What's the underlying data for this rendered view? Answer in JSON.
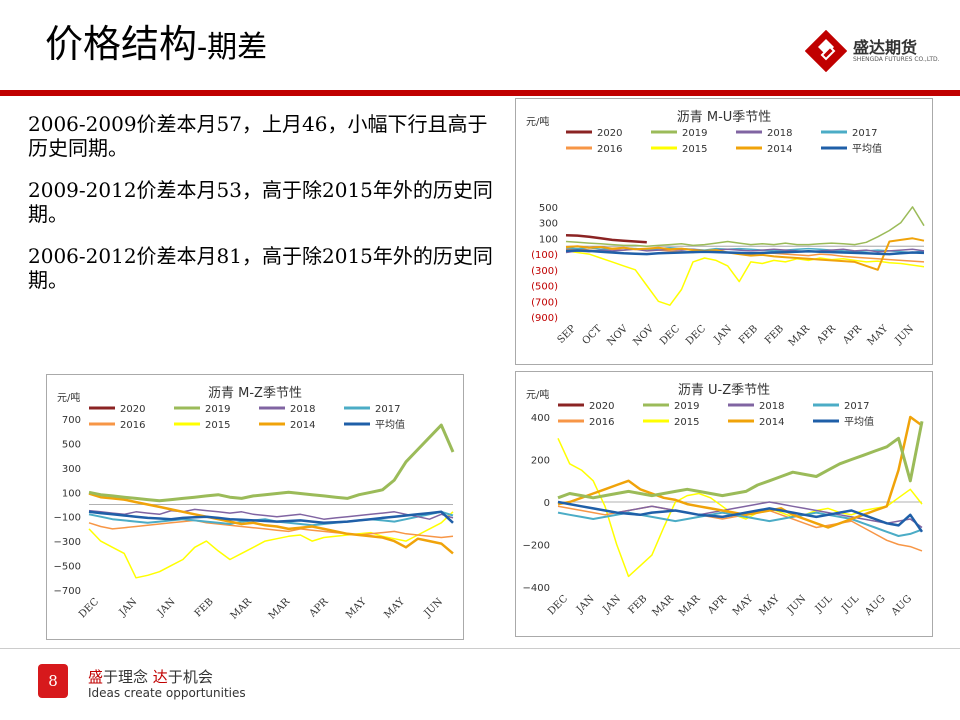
{
  "page": {
    "title_main": "价格结构",
    "title_sub": "-期差",
    "page_number": "8",
    "logo_name": "盛达期货",
    "logo_sub": "SHENGDA FUTURES CO.,LTD.",
    "slogan_cn_1": "盛",
    "slogan_cn_2": "于理念 ",
    "slogan_cn_3": "达",
    "slogan_cn_4": "于机会",
    "slogan_en": "Ideas create opportunities",
    "paragraphs": [
      "2006-2009价差本月57，上月46，小幅下行且高于历史同期。",
      "2009-2012价差本月53，高于除2015年外的历史同期。",
      "2006-2012价差本月81，高于除2015年外的历史同期。"
    ],
    "accent_color": "#c00000"
  },
  "chart_data": [
    {
      "id": "mu",
      "type": "line",
      "title": "沥青 M-U季节性",
      "ylabel": "元/吨",
      "ylim": [
        -900,
        600
      ],
      "yticks": [
        "500",
        "300",
        "100",
        "(100)",
        "(300)",
        "(500)",
        "(700)",
        "(900)"
      ],
      "ytick_values": [
        500,
        300,
        100,
        -100,
        -300,
        -500,
        -700,
        -900
      ],
      "ytick_negative_red": true,
      "x_ticks": [
        "SEP",
        "OCT",
        "NOV",
        "NOV",
        "DEC",
        "DEC",
        "JAN",
        "FEB",
        "FEB",
        "MAR",
        "APR",
        "APR",
        "MAY",
        "JUN"
      ],
      "series": [
        {
          "name": "2020",
          "color": "#8b2323",
          "width": 2.5,
          "values": [
            140,
            135,
            120,
            100,
            80,
            70,
            60,
            50
          ]
        },
        {
          "name": "2019",
          "color": "#9bbb59",
          "width": 1.5,
          "values": [
            60,
            50,
            40,
            30,
            20,
            10,
            10,
            0,
            10,
            20,
            30,
            10,
            20,
            40,
            60,
            40,
            20,
            30,
            20,
            40,
            20,
            20,
            30,
            40,
            30,
            20,
            50,
            120,
            200,
            300,
            500,
            260
          ]
        },
        {
          "name": "2018",
          "color": "#8064a2",
          "width": 1.5,
          "values": [
            -80,
            -60,
            -70,
            -50,
            -60,
            -50,
            -40,
            -60,
            -50,
            -40,
            -50,
            -40,
            -60,
            -50,
            -40,
            -50,
            -60,
            -50,
            -40,
            -50,
            -60,
            -70,
            -60,
            -50,
            -40,
            -60,
            -50,
            -70,
            -60,
            -50,
            -40,
            -60
          ]
        },
        {
          "name": "2017",
          "color": "#4bacc6",
          "width": 1.5,
          "values": [
            -20,
            -30,
            -20,
            -40,
            -30,
            -20,
            -30,
            -40,
            -30,
            -20,
            -30,
            -40,
            -50,
            -30,
            -40,
            -30,
            -40,
            -50,
            -60,
            -50,
            -40,
            -30,
            -40,
            -50,
            -60,
            -70,
            -60,
            -50,
            -60,
            -70,
            -80,
            -60
          ]
        },
        {
          "name": "2016",
          "color": "#f79646",
          "width": 1.5,
          "values": [
            -40,
            -30,
            -50,
            -60,
            -40,
            -50,
            -30,
            -40,
            -50,
            -60,
            -70,
            -80,
            -60,
            -70,
            -80,
            -90,
            -100,
            -80,
            -90,
            -100,
            -110,
            -120,
            -100,
            -110,
            -130,
            -140,
            -150,
            -160,
            -170,
            -180,
            -190,
            -200
          ]
        },
        {
          "name": "2015",
          "color": "#ffff00",
          "width": 1.5,
          "values": [
            -60,
            -80,
            -100,
            -150,
            -200,
            -250,
            -300,
            -500,
            -700,
            -750,
            -550,
            -200,
            -150,
            -180,
            -250,
            -450,
            -200,
            -220,
            -180,
            -200,
            -160,
            -180,
            -150,
            -170,
            -160,
            -180,
            -200,
            -190,
            -210,
            -220,
            -240,
            -260
          ]
        },
        {
          "name": "2014",
          "color": "#f0a30a",
          "width": 2,
          "values": [
            -10,
            0,
            -20,
            -10,
            -30,
            -20,
            -40,
            -30,
            -20,
            -40,
            -30,
            -50,
            -60,
            -50,
            -80,
            -100,
            -120,
            -110,
            -130,
            -140,
            -150,
            -160,
            -170,
            -180,
            -190,
            -200,
            -250,
            -300,
            60,
            80,
            100,
            70
          ]
        },
        {
          "name": "平均值",
          "color": "#1f5fa8",
          "width": 2.5,
          "values": [
            -60,
            -55,
            -60,
            -70,
            -80,
            -90,
            -95,
            -100,
            -90,
            -85,
            -80,
            -75,
            -70,
            -75,
            -80,
            -85,
            -90,
            -85,
            -80,
            -75,
            -70,
            -65,
            -70,
            -75,
            -80,
            -85,
            -90,
            -95,
            -100,
            -90,
            -80,
            -85
          ]
        }
      ]
    },
    {
      "id": "mz",
      "type": "line",
      "title": "沥青 M-Z季节性",
      "ylabel": "元/吨",
      "ylim": [
        -700,
        700
      ],
      "yticks": [
        "700",
        "500",
        "300",
        "100",
        "−100",
        "−300",
        "−500",
        "−700"
      ],
      "ytick_values": [
        700,
        500,
        300,
        100,
        -100,
        -300,
        -500,
        -700
      ],
      "ytick_negative_red": false,
      "x_ticks": [
        "DEC",
        "JAN",
        "JAN",
        "FEB",
        "MAR",
        "MAR",
        "APR",
        "MAY",
        "MAY",
        "JUN"
      ],
      "series": [
        {
          "name": "2020",
          "color": "#8b2323",
          "width": 2.5,
          "values": []
        },
        {
          "name": "2019",
          "color": "#9bbb59",
          "width": 3,
          "values": [
            100,
            80,
            70,
            60,
            50,
            40,
            30,
            40,
            50,
            60,
            70,
            80,
            60,
            50,
            70,
            80,
            90,
            100,
            90,
            80,
            70,
            60,
            50,
            80,
            100,
            120,
            200,
            350,
            450,
            550,
            650,
            430
          ]
        },
        {
          "name": "2018",
          "color": "#8064a2",
          "width": 1.5,
          "values": [
            -50,
            -60,
            -70,
            -80,
            -60,
            -70,
            -80,
            -50,
            -60,
            -40,
            -50,
            -60,
            -70,
            -60,
            -80,
            -90,
            -100,
            -90,
            -80,
            -100,
            -120,
            -110,
            -100,
            -90,
            -80,
            -70,
            -60,
            -80,
            -100,
            -120,
            -80,
            -110
          ]
        },
        {
          "name": "2017",
          "color": "#4bacc6",
          "width": 2,
          "values": [
            -80,
            -100,
            -120,
            -130,
            -140,
            -150,
            -140,
            -130,
            -120,
            -130,
            -140,
            -150,
            -160,
            -140,
            -130,
            -120,
            -140,
            -150,
            -160,
            -170,
            -160,
            -150,
            -140,
            -130,
            -120,
            -130,
            -140,
            -120,
            -100,
            -80,
            -60,
            -90
          ]
        },
        {
          "name": "2016",
          "color": "#f79646",
          "width": 1.5,
          "values": [
            -150,
            -180,
            -200,
            -190,
            -180,
            -170,
            -160,
            -150,
            -140,
            -130,
            -150,
            -160,
            -170,
            -180,
            -190,
            -200,
            -210,
            -220,
            -200,
            -210,
            -220,
            -230,
            -240,
            -250,
            -240,
            -230,
            -220,
            -240,
            -250,
            -260,
            -270,
            -260
          ]
        },
        {
          "name": "2015",
          "color": "#ffff00",
          "width": 1.5,
          "values": [
            -200,
            -300,
            -350,
            -400,
            -600,
            -580,
            -550,
            -500,
            -450,
            -350,
            -300,
            -380,
            -450,
            -400,
            -350,
            -300,
            -280,
            -260,
            -250,
            -300,
            -270,
            -260,
            -250,
            -240,
            -230,
            -260,
            -280,
            -300,
            -250,
            -200,
            -150,
            -60
          ]
        },
        {
          "name": "2014",
          "color": "#f0a30a",
          "width": 2.5,
          "values": [
            90,
            60,
            50,
            40,
            20,
            0,
            -20,
            -40,
            -60,
            -80,
            -100,
            -120,
            -140,
            -160,
            -150,
            -170,
            -180,
            -200,
            -190,
            -180,
            -200,
            -220,
            -240,
            -250,
            -260,
            -270,
            -300,
            -350,
            -280,
            -300,
            -320,
            -400
          ]
        },
        {
          "name": "平均值",
          "color": "#1f5fa8",
          "width": 2.5,
          "values": [
            -60,
            -70,
            -80,
            -90,
            -100,
            -110,
            -115,
            -120,
            -110,
            -105,
            -100,
            -110,
            -120,
            -125,
            -130,
            -135,
            -140,
            -135,
            -130,
            -140,
            -150,
            -145,
            -140,
            -130,
            -120,
            -110,
            -100,
            -90,
            -80,
            -70,
            -60,
            -150
          ]
        }
      ]
    },
    {
      "id": "uz",
      "type": "line",
      "title": "沥青 U-Z季节性",
      "ylabel": "元/吨",
      "ylim": [
        -400,
        400
      ],
      "yticks": [
        "400",
        "200",
        "0",
        "−200",
        "−400"
      ],
      "ytick_values": [
        400,
        200,
        0,
        -200,
        -400
      ],
      "ytick_negative_red": false,
      "x_ticks": [
        "DEC",
        "JAN",
        "JAN",
        "FEB",
        "MAR",
        "MAR",
        "APR",
        "MAY",
        "MAY",
        "JUN",
        "JUL",
        "JUL",
        "AUG",
        "AUG"
      ],
      "series": [
        {
          "name": "2020",
          "color": "#8b2323",
          "width": 2.5,
          "values": []
        },
        {
          "name": "2019",
          "color": "#9bbb59",
          "width": 3,
          "values": [
            20,
            40,
            30,
            20,
            30,
            40,
            50,
            40,
            30,
            40,
            50,
            60,
            50,
            40,
            30,
            40,
            50,
            80,
            100,
            120,
            140,
            130,
            120,
            150,
            180,
            200,
            220,
            240,
            260,
            300,
            100,
            380
          ]
        },
        {
          "name": "2018",
          "color": "#8064a2",
          "width": 1.5,
          "values": [
            0,
            -10,
            -20,
            -30,
            -40,
            -50,
            -40,
            -30,
            -20,
            -30,
            -40,
            -50,
            -60,
            -50,
            -40,
            -30,
            -20,
            -10,
            0,
            -10,
            -20,
            -30,
            -40,
            -50,
            -60,
            -70,
            -80,
            -90,
            -100,
            -90,
            -80,
            -120
          ]
        },
        {
          "name": "2017",
          "color": "#4bacc6",
          "width": 2,
          "values": [
            -50,
            -60,
            -70,
            -80,
            -70,
            -60,
            -50,
            -60,
            -70,
            -80,
            -90,
            -80,
            -70,
            -60,
            -50,
            -60,
            -70,
            -80,
            -90,
            -80,
            -70,
            -60,
            -50,
            -60,
            -70,
            -80,
            -100,
            -120,
            -140,
            -160,
            -150,
            -130
          ]
        },
        {
          "name": "2016",
          "color": "#f79646",
          "width": 1.5,
          "values": [
            -20,
            -30,
            -40,
            -50,
            -60,
            -50,
            -40,
            -30,
            -20,
            -30,
            -40,
            -50,
            -60,
            -70,
            -80,
            -70,
            -60,
            -50,
            -40,
            -60,
            -80,
            -100,
            -120,
            -110,
            -100,
            -90,
            -120,
            -150,
            -180,
            -200,
            -210,
            -230
          ]
        },
        {
          "name": "2015",
          "color": "#ffff00",
          "width": 1.5,
          "values": [
            300,
            180,
            150,
            100,
            -20,
            -200,
            -350,
            -300,
            -250,
            -120,
            0,
            30,
            40,
            20,
            -20,
            -60,
            -80,
            -50,
            -30,
            -50,
            -70,
            -60,
            -40,
            -30,
            -50,
            -60,
            -40,
            -30,
            -20,
            20,
            60,
            -10
          ]
        },
        {
          "name": "2014",
          "color": "#f0a30a",
          "width": 2.5,
          "values": [
            -10,
            0,
            20,
            40,
            60,
            80,
            100,
            60,
            40,
            20,
            10,
            -10,
            -20,
            -30,
            -40,
            -50,
            -60,
            -50,
            -40,
            -30,
            -60,
            -80,
            -100,
            -120,
            -100,
            -80,
            -60,
            -40,
            -20,
            150,
            400,
            360
          ]
        },
        {
          "name": "平均值",
          "color": "#1f5fa8",
          "width": 2.5,
          "values": [
            0,
            -10,
            -20,
            -30,
            -40,
            -50,
            -55,
            -60,
            -50,
            -45,
            -40,
            -50,
            -60,
            -65,
            -70,
            -60,
            -50,
            -40,
            -30,
            -40,
            -50,
            -60,
            -70,
            -60,
            -50,
            -40,
            -60,
            -80,
            -100,
            -110,
            -60,
            -140
          ]
        }
      ]
    }
  ]
}
